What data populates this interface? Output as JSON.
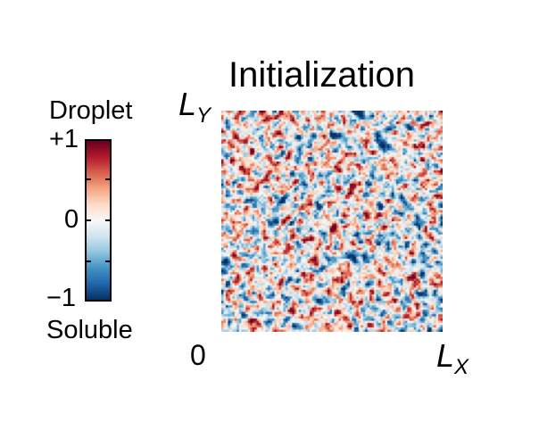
{
  "chart_data": {
    "type": "heatmap",
    "title": "Initialization",
    "description_values": "random noise field, values uniformly spread between -1 and +1",
    "value_range": [
      -1,
      1
    ],
    "colormap": "RdBu_r (red = +1, white = 0, blue = -1)",
    "colorbar": {
      "label_top": "Droplet",
      "label_bottom": "Soluble",
      "ticks": [
        "+1",
        "0",
        "−1"
      ]
    },
    "x_axis": {
      "origin_label": "0",
      "max_label_var": "L",
      "max_label_sub": "X"
    },
    "y_axis": {
      "max_label_var": "L",
      "max_label_sub": "Y"
    },
    "grid": false,
    "colorbar_position": "left"
  }
}
